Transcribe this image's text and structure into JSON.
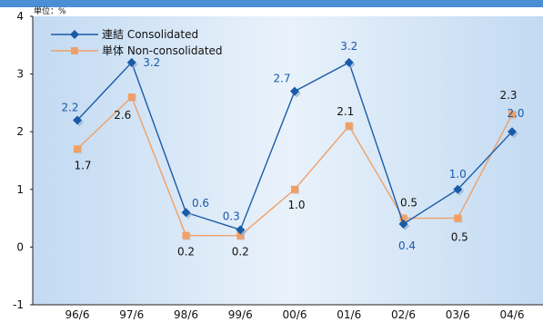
{
  "chart_data": {
    "type": "line",
    "unit_label": "単位：%",
    "categories": [
      "96/6",
      "97/6",
      "98/6",
      "99/6",
      "00/6",
      "01/6",
      "02/6",
      "03/6",
      "04/6"
    ],
    "ylim": [
      -1,
      4
    ],
    "yticks": [
      "-1",
      "0",
      "1",
      "2",
      "3",
      "4"
    ],
    "legend_position": "top-left",
    "series": [
      {
        "name": "連結 Consolidated",
        "color": "#1a5aa8",
        "marker": "diamond",
        "values": [
          2.2,
          3.2,
          0.6,
          0.3,
          2.7,
          3.2,
          0.4,
          1.0,
          2.0
        ],
        "labels": [
          "2.2",
          "3.2",
          "0.6",
          "0.3",
          "2.7",
          "3.2",
          "0.4",
          "1.0",
          "2.0"
        ]
      },
      {
        "name": "単体 Non-consolidated",
        "color": "#f0a066",
        "marker": "square",
        "values": [
          1.7,
          2.6,
          0.2,
          0.2,
          1.0,
          2.1,
          0.5,
          0.5,
          2.3
        ],
        "labels": [
          "1.7",
          "2.6",
          "0.2",
          "0.2",
          "1.0",
          "2.1",
          "0.5",
          "0.5",
          "2.3"
        ]
      }
    ]
  }
}
